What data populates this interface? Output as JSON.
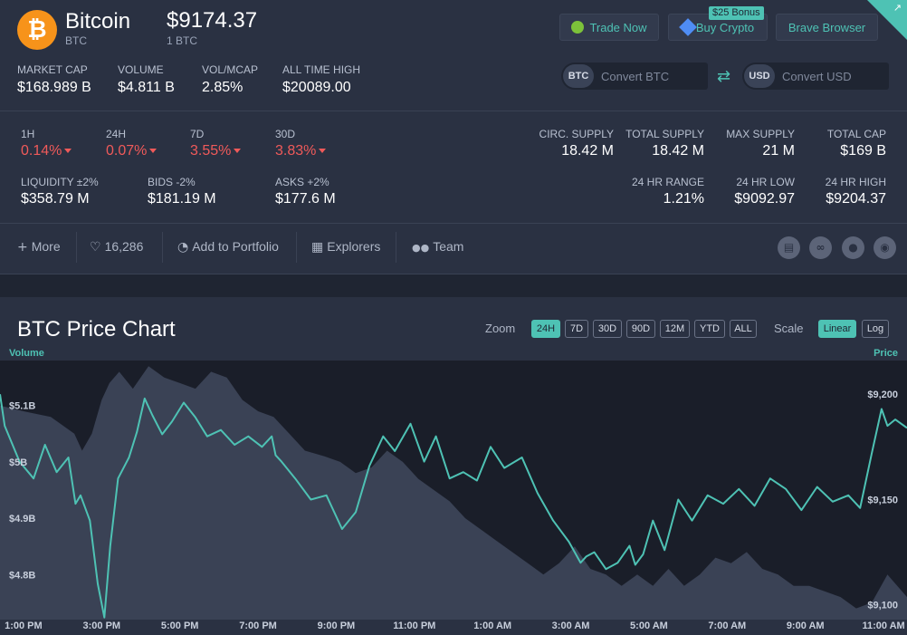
{
  "coin": {
    "name": "Bitcoin",
    "symbol": "BTC",
    "price": "$9174.37",
    "price_unit": "1 BTC",
    "logo_glyph": "₿"
  },
  "actions": {
    "trade": "Trade Now",
    "buy": "Buy Crypto",
    "buy_bonus": "$25 Bonus",
    "brave": "Brave Browser"
  },
  "stats_top": [
    {
      "label": "MARKET CAP",
      "value": "$168.989 B"
    },
    {
      "label": "VOLUME",
      "value": "$4.811 B"
    },
    {
      "label": "VOL/MCAP",
      "value": "2.85%"
    },
    {
      "label": "ALL TIME HIGH",
      "value": "$20089.00"
    }
  ],
  "converter": {
    "btc_tag": "BTC",
    "btc_placeholder": "Convert BTC",
    "usd_tag": "USD",
    "usd_placeholder": "Convert USD"
  },
  "changes": [
    {
      "label": "1H",
      "value": "0.14%"
    },
    {
      "label": "24H",
      "value": "0.07%"
    },
    {
      "label": "7D",
      "value": "3.55%"
    },
    {
      "label": "30D",
      "value": "3.83%"
    }
  ],
  "depth": [
    {
      "label": "LIQUIDITY ±2%",
      "value": "$358.79 M"
    },
    {
      "label": "BIDS -2%",
      "value": "$181.19 M"
    },
    {
      "label": "ASKS +2%",
      "value": "$177.6 M"
    }
  ],
  "supply": [
    {
      "label": "CIRC. SUPPLY",
      "value": "18.42 M"
    },
    {
      "label": "TOTAL SUPPLY",
      "value": "18.42 M"
    },
    {
      "label": "MAX SUPPLY",
      "value": "21 M"
    },
    {
      "label": "TOTAL CAP",
      "value": "$169 B"
    }
  ],
  "range": [
    {
      "label": "24 HR RANGE",
      "value": "1.21%"
    },
    {
      "label": "24 HR LOW",
      "value": "$9092.97"
    },
    {
      "label": "24 HR HIGH",
      "value": "$9204.37"
    }
  ],
  "toolbar": {
    "more": "More",
    "likes": "16,286",
    "portfolio": "Add to Portfolio",
    "explorers": "Explorers",
    "team": "Team"
  },
  "chart": {
    "title": "BTC Price Chart",
    "zoom_label": "Zoom",
    "zoom_options": [
      "24H",
      "7D",
      "30D",
      "90D",
      "12M",
      "YTD",
      "ALL"
    ],
    "zoom_selected": "24H",
    "scale_label": "Scale",
    "scale_options": [
      "Linear",
      "Log"
    ],
    "scale_selected": "Linear",
    "left_axis_title": "Volume",
    "right_axis_title": "Price"
  },
  "chart_data": {
    "type": "line",
    "x_labels": [
      "1:00 PM",
      "3:00 PM",
      "5:00 PM",
      "7:00 PM",
      "9:00 PM",
      "11:00 PM",
      "1:00 AM",
      "3:00 AM",
      "5:00 AM",
      "7:00 AM",
      "9:00 AM",
      "11:00 AM"
    ],
    "x_range": [
      12.4,
      35.6
    ],
    "price_axis": {
      "ticks": [
        "$9,200",
        "$9,150",
        "$9,100"
      ],
      "tick_values": [
        9200,
        9150,
        9100
      ],
      "range": [
        9093,
        9216
      ]
    },
    "volume_axis": {
      "ticks": [
        "$5.1B",
        "$5B",
        "$4.9B",
        "$4.8B"
      ],
      "tick_values": [
        5.1,
        5.0,
        4.9,
        4.8
      ],
      "range": [
        4.72,
        5.18
      ]
    },
    "series": [
      {
        "name": "Price",
        "color": "#4ec2b4",
        "x": [
          12.4,
          12.52,
          12.9,
          13.26,
          13.55,
          13.85,
          14.15,
          14.33,
          14.46,
          14.7,
          14.9,
          15.07,
          15.22,
          15.42,
          15.7,
          15.9,
          16.1,
          16.3,
          16.55,
          16.8,
          17.1,
          17.4,
          17.7,
          18.05,
          18.4,
          18.75,
          19.1,
          19.35,
          19.45,
          19.6,
          19.95,
          20.35,
          20.75,
          21.15,
          21.5,
          21.85,
          22.2,
          22.5,
          22.9,
          23.25,
          23.55,
          23.9,
          24.25,
          24.6,
          24.95,
          25.3,
          25.75,
          26.15,
          26.55,
          26.95,
          27.25,
          27.4,
          27.6,
          27.9,
          28.2,
          28.5,
          28.65,
          28.85,
          29.1,
          29.4,
          29.75,
          30.1,
          30.5,
          30.9,
          31.3,
          31.7,
          32.1,
          32.5,
          32.9,
          33.3,
          33.7,
          34.1,
          34.4,
          34.7,
          34.95,
          35.1,
          35.3,
          35.6
        ],
        "y": [
          9200,
          9185,
          9168,
          9160,
          9176,
          9163,
          9170,
          9148,
          9152,
          9140,
          9110,
          9094,
          9128,
          9160,
          9170,
          9182,
          9198,
          9190,
          9181,
          9187,
          9196,
          9189,
          9180,
          9183,
          9176,
          9180,
          9175,
          9180,
          9171,
          9168,
          9160,
          9150,
          9152,
          9136,
          9144,
          9166,
          9180,
          9173,
          9186,
          9168,
          9180,
          9160,
          9163,
          9159,
          9175,
          9165,
          9170,
          9153,
          9140,
          9130,
          9120,
          9123,
          9125,
          9117,
          9120,
          9128,
          9119,
          9124,
          9140,
          9126,
          9150,
          9140,
          9152,
          9148,
          9155,
          9147,
          9160,
          9155,
          9145,
          9156,
          9149,
          9152,
          9146,
          9172,
          9193,
          9185,
          9188,
          9184
        ]
      },
      {
        "name": "Volume",
        "color": "#3a4255",
        "x": [
          12.4,
          13.0,
          13.7,
          14.3,
          14.5,
          14.75,
          15.0,
          15.2,
          15.45,
          15.8,
          16.2,
          16.6,
          17.0,
          17.4,
          17.8,
          18.2,
          18.6,
          19.0,
          19.4,
          19.8,
          20.2,
          20.7,
          21.1,
          21.5,
          21.9,
          22.3,
          22.7,
          23.1,
          23.5,
          23.9,
          24.3,
          24.7,
          25.1,
          25.5,
          25.9,
          26.3,
          26.7,
          27.1,
          27.5,
          27.9,
          28.3,
          28.7,
          29.1,
          29.5,
          29.9,
          30.3,
          30.7,
          31.1,
          31.5,
          31.9,
          32.3,
          32.7,
          33.1,
          33.5,
          33.9,
          34.3,
          34.7,
          35.1,
          35.6
        ],
        "y": [
          5.1,
          5.09,
          5.08,
          5.05,
          5.02,
          5.05,
          5.11,
          5.14,
          5.16,
          5.13,
          5.17,
          5.15,
          5.14,
          5.13,
          5.16,
          5.15,
          5.11,
          5.09,
          5.08,
          5.05,
          5.02,
          5.01,
          5.0,
          4.98,
          4.99,
          5.02,
          5.0,
          4.97,
          4.95,
          4.93,
          4.9,
          4.88,
          4.86,
          4.84,
          4.82,
          4.8,
          4.82,
          4.85,
          4.81,
          4.8,
          4.78,
          4.8,
          4.78,
          4.81,
          4.78,
          4.8,
          4.83,
          4.82,
          4.84,
          4.81,
          4.8,
          4.78,
          4.78,
          4.77,
          4.76,
          4.74,
          4.75,
          4.8,
          4.76
        ]
      }
    ]
  }
}
